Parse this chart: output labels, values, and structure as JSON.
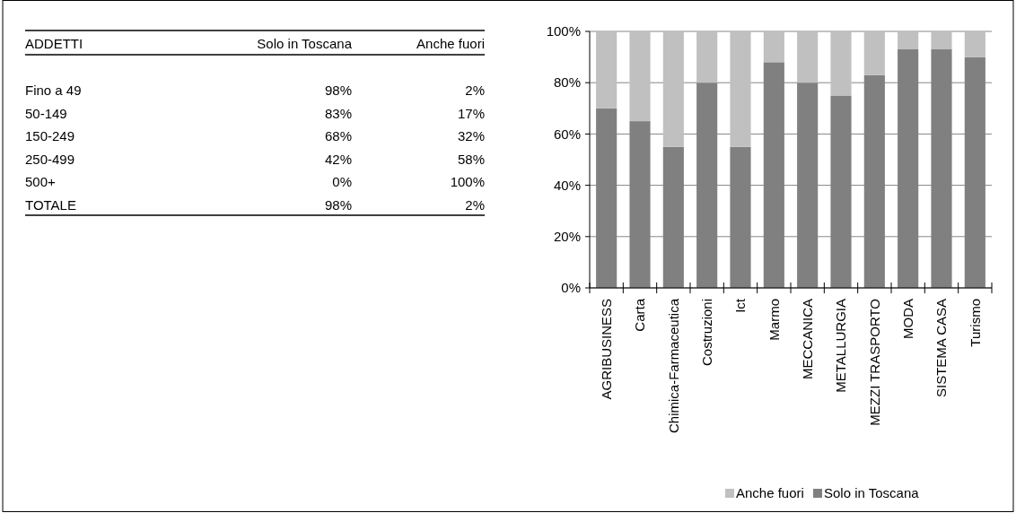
{
  "chart_data": [
    {
      "type": "other",
      "title": "ADDETTI",
      "categories": [
        "Fino a 49",
        "50-149",
        "150-249",
        "250-499",
        "500+",
        "TOTALE"
      ],
      "series": [
        {
          "name": "Solo in Toscana",
          "values": [
            98,
            83,
            68,
            42,
            0,
            98
          ],
          "value_labels": [
            "98%",
            "83%",
            "68%",
            "42%",
            "0%",
            "98%"
          ]
        },
        {
          "name": "Anche fuori",
          "values": [
            2,
            17,
            32,
            58,
            100,
            2
          ],
          "value_labels": [
            "2%",
            "17%",
            "32%",
            "58%",
            "100%",
            "2%"
          ]
        }
      ]
    },
    {
      "type": "bar",
      "stacked": true,
      "categories": [
        "AGRIBUSINESS",
        "Carta",
        "Chimica-Farmaceutica",
        "Costruzioni",
        "Ict",
        "Marmo",
        "MECCANICA",
        "METALLURGIA",
        "MEZZI TRASPORTO",
        "MODA",
        "SISTEMA CASA",
        "Turismo"
      ],
      "series": [
        {
          "name": "Solo in Toscana",
          "color": "#808080",
          "values": [
            70,
            65,
            55,
            80,
            55,
            88,
            80,
            75,
            83,
            93,
            93,
            90
          ]
        },
        {
          "name": "Anche fuori",
          "color": "#c0c0c0",
          "values": [
            30,
            35,
            45,
            20,
            45,
            12,
            20,
            25,
            17,
            7,
            7,
            10
          ]
        }
      ],
      "ylim": [
        0,
        100
      ],
      "yticks": [
        {
          "value": 0,
          "label": "0%"
        },
        {
          "value": 20,
          "label": "20%"
        },
        {
          "value": 40,
          "label": "40%"
        },
        {
          "value": 60,
          "label": "60%"
        },
        {
          "value": 80,
          "label": "80%"
        },
        {
          "value": 100,
          "label": "100%"
        }
      ],
      "grid": "y",
      "legend": "bottom"
    }
  ]
}
